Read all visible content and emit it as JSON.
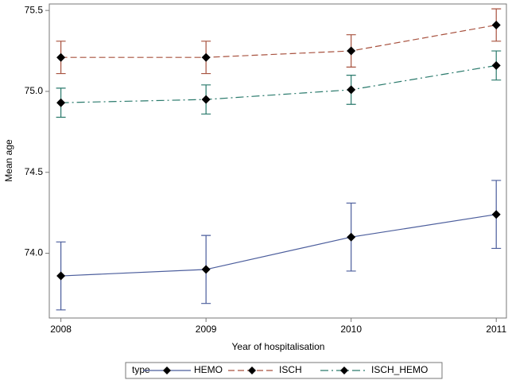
{
  "chart_data": {
    "type": "line",
    "x_label": "Year of hospitalisation",
    "y_label": "Mean age",
    "x": [
      2008,
      2009,
      2010,
      2011
    ],
    "xlim": [
      2007.92,
      2011.07
    ],
    "xticks": [
      2008,
      2009,
      2010,
      2011
    ],
    "ylim": [
      73.6,
      75.54
    ],
    "yticks": [
      {
        "value": 74,
        "label": "74.0"
      },
      74.5,
      {
        "value": 75,
        "label": "75.0"
      },
      75.5
    ],
    "legend_title": "type",
    "legend_position": "bottom",
    "series": [
      {
        "name": "HEMO",
        "color": "#4b5d9c",
        "dash": "solid",
        "values": [
          73.86,
          73.9,
          74.1,
          74.24
        ],
        "errors": [
          0.21,
          0.21,
          0.21,
          0.21
        ]
      },
      {
        "name": "ISCH",
        "color": "#a8523f",
        "dash": "dashed",
        "values": [
          75.21,
          75.21,
          75.25,
          75.41
        ],
        "errors": [
          0.1,
          0.1,
          0.1,
          0.1
        ]
      },
      {
        "name": "ISCH_HEMO",
        "color": "#2a7a6c",
        "dash": "dashdot",
        "values": [
          74.93,
          74.95,
          75.01,
          75.16
        ],
        "errors": [
          0.09,
          0.09,
          0.09,
          0.09
        ]
      }
    ]
  }
}
